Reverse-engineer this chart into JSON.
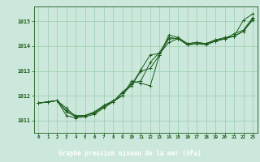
{
  "title": "Graphe pression niveau de la mer (hPa)",
  "hours": [
    0,
    1,
    2,
    3,
    4,
    5,
    6,
    7,
    8,
    9,
    10,
    11,
    12,
    13,
    14,
    15,
    16,
    17,
    18,
    19,
    20,
    21,
    22,
    23
  ],
  "line1": [
    1011.7,
    1011.75,
    1011.8,
    1011.5,
    1011.15,
    1011.2,
    1011.3,
    1011.55,
    1011.75,
    1012.1,
    1012.4,
    1013.0,
    1013.1,
    1013.65,
    1014.45,
    1014.35,
    1014.1,
    1014.15,
    1014.1,
    1014.25,
    1014.35,
    1014.4,
    1015.05,
    1015.3
  ],
  "line2": [
    1011.7,
    1011.75,
    1011.8,
    1011.35,
    1011.15,
    1011.2,
    1011.3,
    1011.6,
    1011.75,
    1012.15,
    1012.45,
    1013.05,
    1013.65,
    1013.7,
    1014.15,
    1014.3,
    1014.05,
    1014.1,
    1014.1,
    1014.2,
    1014.3,
    1014.5,
    1014.65,
    1015.15
  ],
  "line3": [
    1011.7,
    1011.75,
    1011.8,
    1011.2,
    1011.1,
    1011.15,
    1011.25,
    1011.5,
    1011.75,
    1012.0,
    1012.6,
    1012.5,
    1012.4,
    1013.65,
    1014.3,
    1014.3,
    1014.05,
    1014.1,
    1014.05,
    1014.2,
    1014.3,
    1014.4,
    1014.6,
    1015.05
  ],
  "line4": [
    1011.7,
    1011.75,
    1011.8,
    1011.4,
    1011.2,
    1011.2,
    1011.35,
    1011.6,
    1011.8,
    1012.0,
    1012.5,
    1012.6,
    1013.35,
    1013.75,
    1014.35,
    1014.3,
    1014.1,
    1014.15,
    1014.1,
    1014.25,
    1014.3,
    1014.4,
    1014.6,
    1015.1
  ],
  "line_color": "#1a5c1a",
  "bg_color": "#cce8dc",
  "grid_color": "#99ccaa",
  "footer_bg": "#2a6e2a",
  "footer_fg": "#ffffff",
  "ylim": [
    1010.5,
    1015.6
  ],
  "yticks": [
    1011,
    1012,
    1013,
    1014,
    1015
  ]
}
